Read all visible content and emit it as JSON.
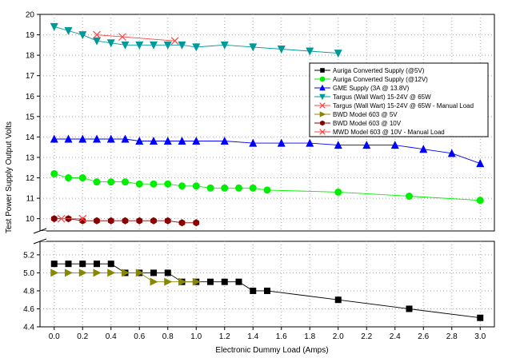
{
  "chart_data": {
    "type": "line",
    "title": "",
    "xlabel": "Electronic Dummy Load (Amps)",
    "ylabel": "Test Power Supply Output Volts",
    "xlim": [
      -0.1,
      3.1
    ],
    "x_ticks": [
      "0.0",
      "0.2",
      "0.4",
      "0.6",
      "0.8",
      "1.0",
      "1.2",
      "1.4",
      "1.6",
      "1.8",
      "2.0",
      "2.2",
      "2.4",
      "2.6",
      "2.8",
      "3.0"
    ],
    "y_upper_range": [
      9.4,
      20
    ],
    "y_upper_ticks": [
      "10",
      "11",
      "12",
      "13",
      "14",
      "15",
      "16",
      "17",
      "18",
      "19",
      "20"
    ],
    "y_lower_range": [
      4.4,
      5.35
    ],
    "y_lower_ticks": [
      "4.4",
      "4.6",
      "4.8",
      "5.0",
      "5.2"
    ],
    "grid": "dotted",
    "legend_position": "right",
    "series": [
      {
        "name": "Auriga Converted Supply (@5V)",
        "color": "#000000",
        "marker": "square",
        "x": [
          0,
          0.1,
          0.2,
          0.3,
          0.4,
          0.5,
          0.6,
          0.7,
          0.8,
          0.9,
          1.0,
          1.1,
          1.2,
          1.3,
          1.4,
          1.5,
          2.0,
          2.5,
          3.0
        ],
        "y": [
          5.1,
          5.1,
          5.1,
          5.1,
          5.1,
          5.0,
          5.0,
          5.0,
          5.0,
          4.9,
          4.9,
          4.9,
          4.9,
          4.9,
          4.8,
          4.8,
          4.7,
          4.6,
          4.5
        ]
      },
      {
        "name": "Auriga Converted Supply (@12V)",
        "color": "#00ee00",
        "marker": "circle",
        "x": [
          0,
          0.1,
          0.2,
          0.3,
          0.4,
          0.5,
          0.6,
          0.7,
          0.8,
          0.9,
          1.0,
          1.1,
          1.2,
          1.3,
          1.4,
          1.5,
          2.0,
          2.5,
          3.0
        ],
        "y": [
          12.2,
          12.0,
          12.0,
          11.8,
          11.8,
          11.8,
          11.7,
          11.7,
          11.7,
          11.6,
          11.6,
          11.5,
          11.5,
          11.5,
          11.5,
          11.4,
          11.3,
          11.1,
          10.9
        ]
      },
      {
        "name": "GME Supply (3A @ 13.8V)",
        "color": "#0000ff",
        "marker": "triangle-up",
        "x": [
          0,
          0.1,
          0.2,
          0.3,
          0.4,
          0.5,
          0.6,
          0.7,
          0.8,
          0.9,
          1.0,
          1.2,
          1.4,
          1.6,
          1.8,
          2.0,
          2.2,
          2.4,
          2.6,
          2.8,
          3.0
        ],
        "y": [
          13.9,
          13.9,
          13.9,
          13.9,
          13.9,
          13.9,
          13.8,
          13.8,
          13.8,
          13.8,
          13.8,
          13.8,
          13.7,
          13.7,
          13.7,
          13.6,
          13.6,
          13.6,
          13.4,
          13.2,
          12.7
        ]
      },
      {
        "name": "Targus (Wall Wart) 15-24V @ 65W",
        "color": "#009999",
        "marker": "triangle-down",
        "x": [
          0,
          0.1,
          0.2,
          0.3,
          0.4,
          0.5,
          0.6,
          0.7,
          0.8,
          0.9,
          1.0,
          1.2,
          1.4,
          1.6,
          1.8,
          2.0
        ],
        "y": [
          19.4,
          19.2,
          19.0,
          18.7,
          18.6,
          18.5,
          18.5,
          18.5,
          18.5,
          18.5,
          18.4,
          18.5,
          18.4,
          18.3,
          18.2,
          18.1
        ]
      },
      {
        "name": "Targus (Wall Wart) 15-24V @ 65W - Manual Load",
        "color": "#ff4444",
        "marker": "x",
        "x": [
          0.3,
          0.48,
          0.85
        ],
        "y": [
          19.0,
          18.9,
          18.7
        ]
      },
      {
        "name": "BWD Model 603 @ 5V",
        "color": "#888800",
        "marker": "triangle-right",
        "x": [
          0,
          0.1,
          0.2,
          0.3,
          0.4,
          0.5,
          0.6,
          0.7,
          0.8,
          0.9,
          1.0
        ],
        "y": [
          5.0,
          5.0,
          5.0,
          5.0,
          5.0,
          5.0,
          5.0,
          4.9,
          4.9,
          4.9,
          4.9
        ]
      },
      {
        "name": "BWD Model 603 @ 10V",
        "color": "#880000",
        "marker": "hexagon",
        "x": [
          0,
          0.1,
          0.2,
          0.3,
          0.4,
          0.5,
          0.6,
          0.7,
          0.8,
          0.9,
          1.0
        ],
        "y": [
          10.0,
          10.0,
          9.9,
          9.9,
          9.9,
          9.9,
          9.9,
          9.9,
          9.9,
          9.8,
          9.8
        ]
      },
      {
        "name": "MWD Model 603 @ 10V - Manual Load",
        "color": "#ff4444",
        "marker": "x",
        "x": [
          0.05,
          0.2
        ],
        "y": [
          10.0,
          10.0
        ]
      }
    ]
  }
}
